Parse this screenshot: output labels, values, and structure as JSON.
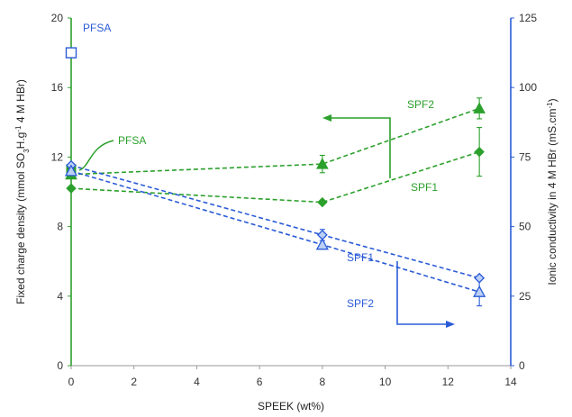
{
  "chart_data": {
    "type": "scatter",
    "xlabel": "SPEEK (wt%)",
    "xlim": [
      0,
      14
    ],
    "x_ticks": [
      0,
      2,
      4,
      6,
      8,
      10,
      12,
      14
    ],
    "left_axis": {
      "label_prefix": "Fixed charge density (mmol SO",
      "label_sub": "3",
      "label_mid": "H.g",
      "label_sup": "-1",
      "label_suffix": " 4 M HBr)",
      "ylim": [
        0,
        20
      ],
      "ticks": [
        0,
        4,
        8,
        12,
        16,
        20
      ],
      "color": "#2ca02c"
    },
    "right_axis": {
      "label_prefix": "Ionic conductivity in 4 M HBr (mS.cm",
      "label_sup": "-1",
      "label_suffix": ")",
      "ylim": [
        0,
        125
      ],
      "ticks": [
        0,
        25,
        50,
        75,
        100,
        125
      ],
      "color": "#2a5bd7"
    },
    "series": [
      {
        "name": "SPF2",
        "axis": "left",
        "marker": "triangle",
        "color": "#2ca02c",
        "x": [
          0,
          8,
          13
        ],
        "y": [
          11.0,
          11.6,
          14.8
        ],
        "err": [
          0,
          0.5,
          0.6
        ]
      },
      {
        "name": "SPF1",
        "axis": "left",
        "marker": "diamond",
        "color": "#2ca02c",
        "x": [
          0,
          8,
          13
        ],
        "y": [
          10.2,
          9.4,
          12.3
        ],
        "err": [
          0,
          0,
          1.4
        ]
      },
      {
        "name": "SPF1",
        "axis": "right",
        "marker": "diamond-open",
        "color": "#2a5bd7",
        "x": [
          0,
          8,
          13
        ],
        "y": [
          72,
          47,
          31.5
        ],
        "err": [
          0,
          2,
          0
        ]
      },
      {
        "name": "SPF2",
        "axis": "right",
        "marker": "triangle-open",
        "color": "#2a5bd7",
        "x": [
          0,
          8,
          13
        ],
        "y": [
          70,
          43.5,
          26.5
        ],
        "err": [
          0,
          1.5,
          5
        ]
      }
    ],
    "reference_points": [
      {
        "name": "PFSA",
        "axis": "right",
        "marker": "square-open",
        "color": "#2a5bd7",
        "x": 0,
        "y": 112.5
      },
      {
        "name": "PFSA",
        "axis": "left",
        "marker": "square",
        "color": "#2ca02c",
        "x": 0,
        "y": 11.3
      }
    ],
    "annotations": [
      {
        "text": "PFSA",
        "color": "#2a5bd7"
      },
      {
        "text": "PFSA",
        "color": "#2ca02c"
      },
      {
        "text": "SPF2",
        "color": "#2ca02c"
      },
      {
        "text": "SPF1",
        "color": "#2ca02c"
      },
      {
        "text": "SPF1",
        "color": "#2a5bd7"
      },
      {
        "text": "SPF2",
        "color": "#2a5bd7"
      }
    ],
    "grid": false
  }
}
